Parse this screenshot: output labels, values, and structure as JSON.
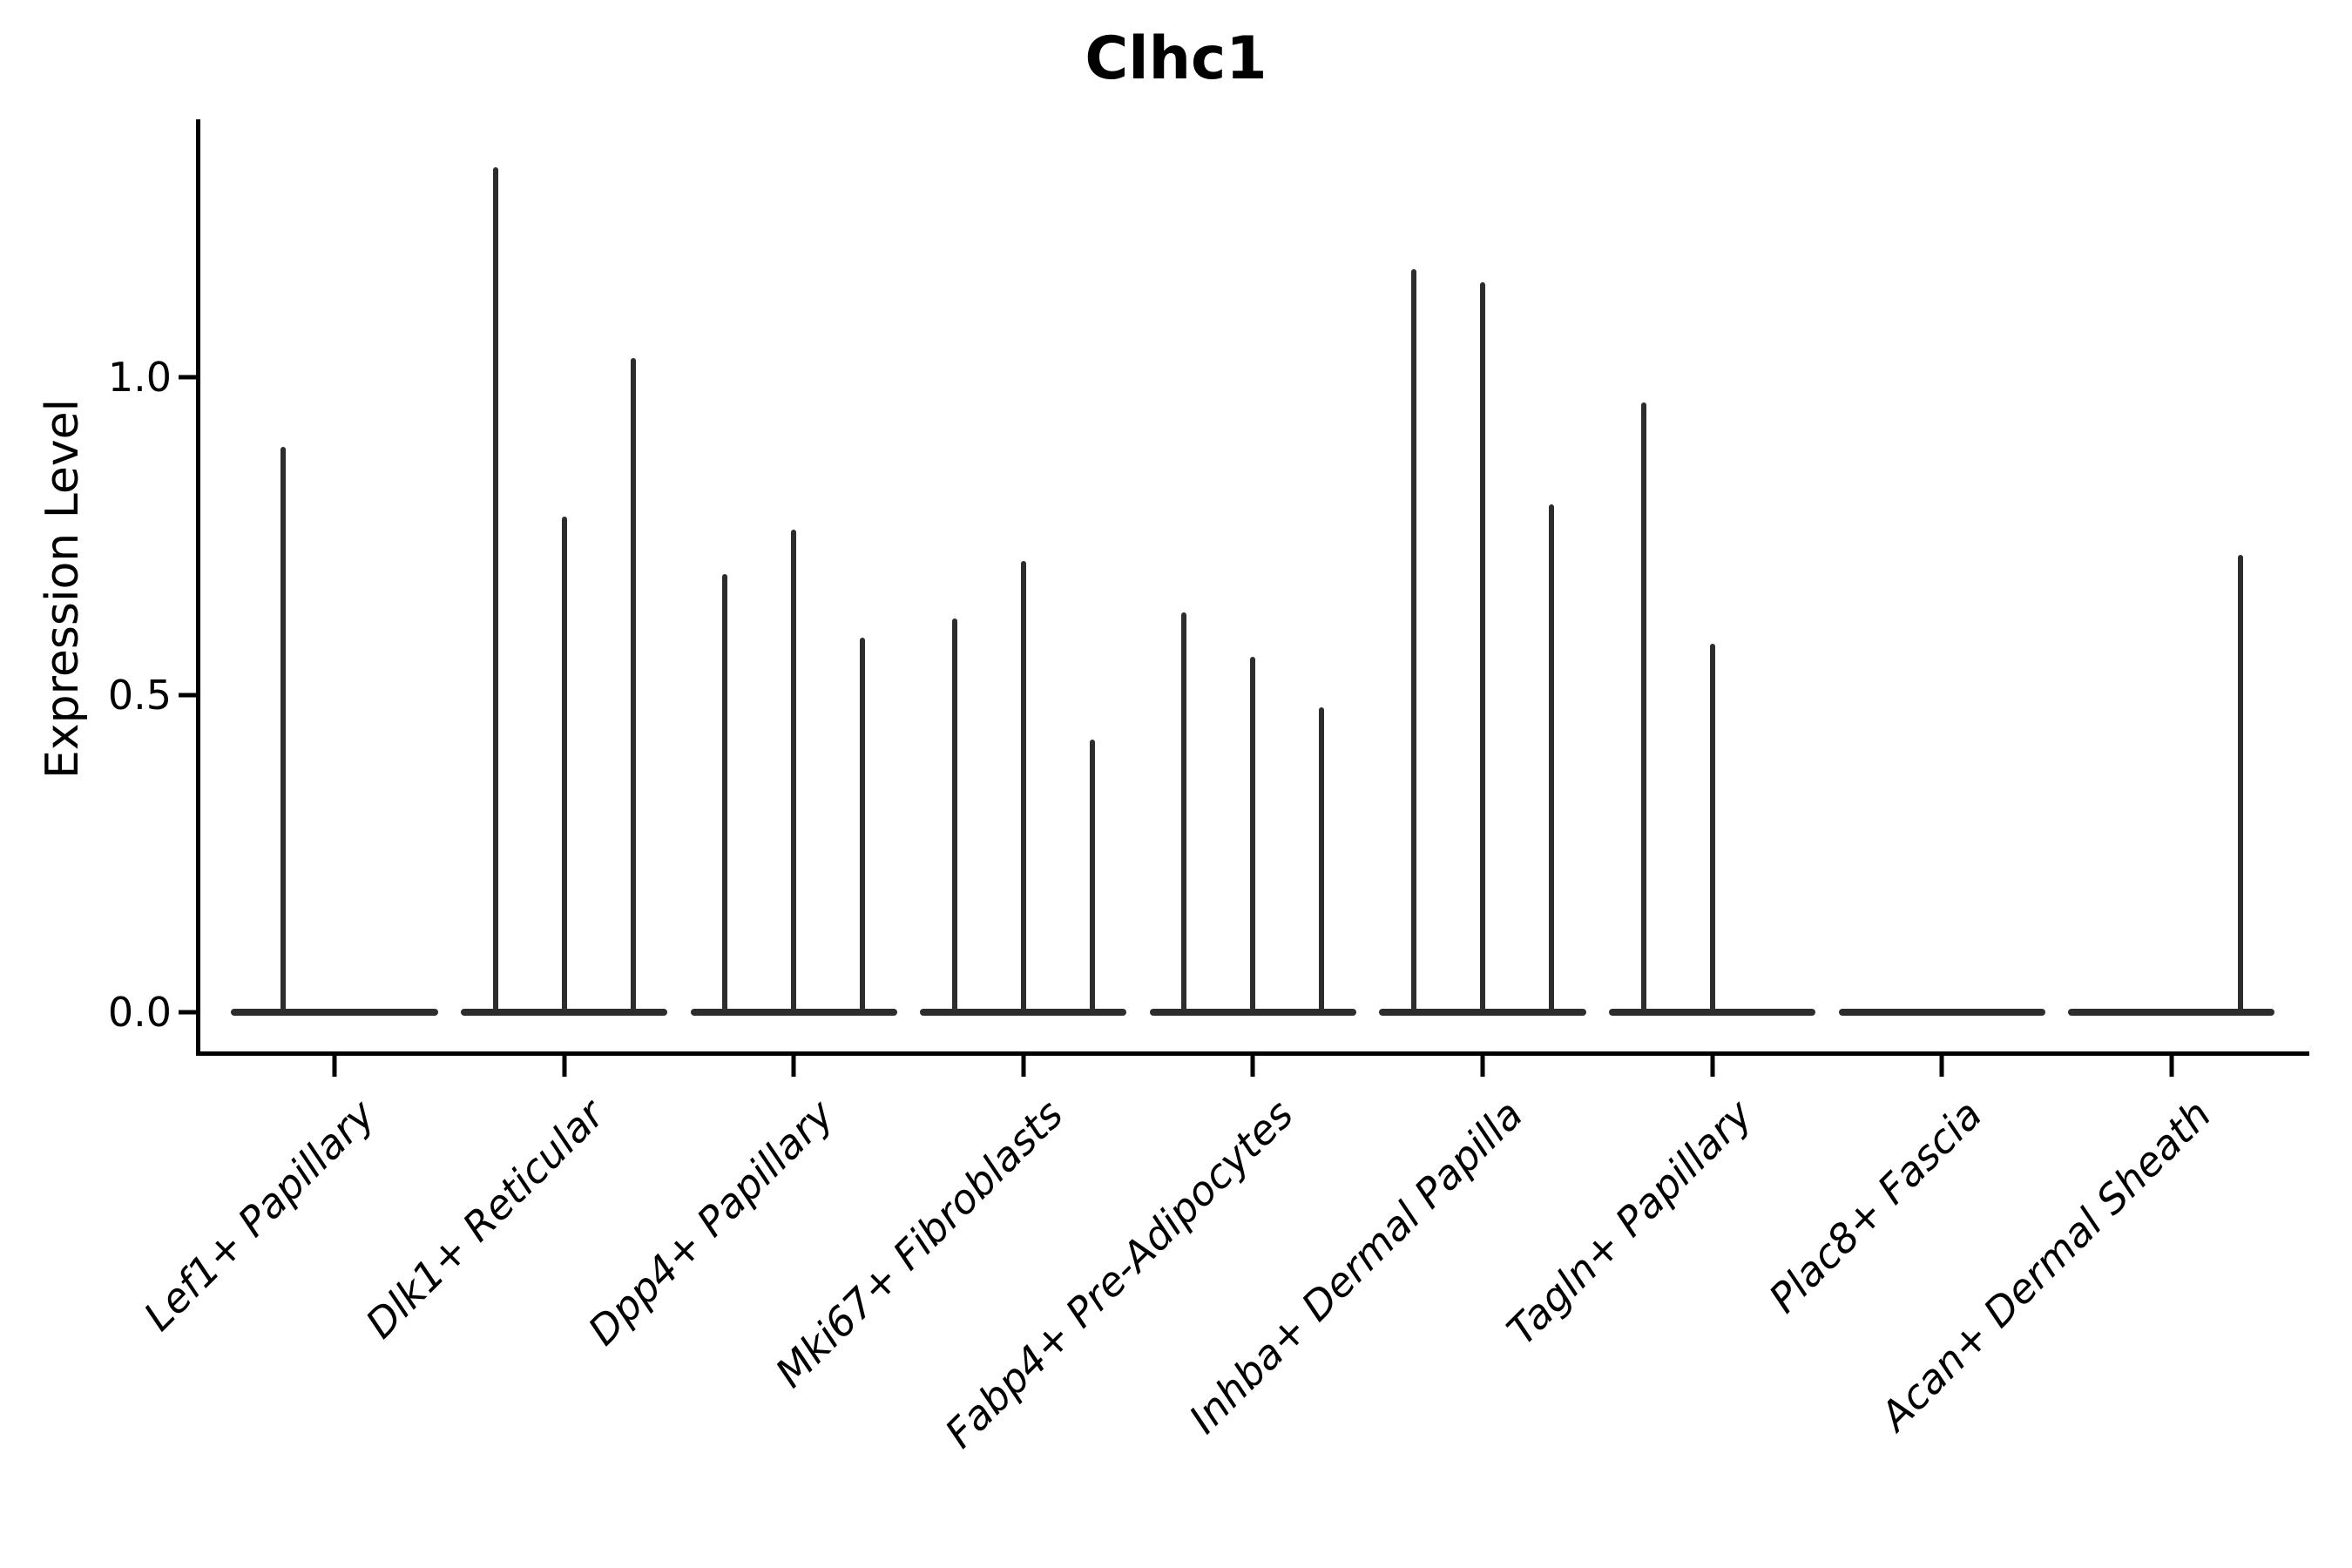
{
  "chart_data": {
    "type": "violin",
    "title": "Clhc1",
    "ylabel": "Expression Level",
    "ylim": [
      0,
      1.4
    ],
    "grid": false,
    "yticks": [
      {
        "label": "0.0",
        "value": 0.0
      },
      {
        "label": "0.5",
        "value": 0.5
      },
      {
        "label": "1.0",
        "value": 1.0
      }
    ],
    "line_color": "#2d2d2d",
    "axis_color": "#000000",
    "categories": [
      {
        "label": "Lef1+ Papillary",
        "violin_max_values": [
          0.89,
          0
        ]
      },
      {
        "label": "Dlk1+ Reticular",
        "violin_max_values": [
          1.33,
          0.78,
          1.03
        ]
      },
      {
        "label": "Dpp4+ Papillary",
        "violin_max_values": [
          0.69,
          0.76,
          0.59
        ]
      },
      {
        "label": "Mki67+ Fibroblasts",
        "violin_max_values": [
          0.62,
          0.71,
          0.43
        ]
      },
      {
        "label": "Fabp4+ Pre-Adipocytes",
        "violin_max_values": [
          0.63,
          0.56,
          0.48
        ]
      },
      {
        "label": "Inhba+ Dermal Papilla",
        "violin_max_values": [
          1.17,
          1.15,
          0.8
        ]
      },
      {
        "label": "Tagln+ Papillary",
        "violin_max_values": [
          0.96,
          0.58,
          0
        ]
      },
      {
        "label": "Plac8+ Fascia",
        "violin_max_values": [
          0,
          0,
          0
        ]
      },
      {
        "label": "Acan+ Dermal Sheath",
        "violin_max_values": [
          0,
          0,
          0.72
        ]
      }
    ]
  }
}
